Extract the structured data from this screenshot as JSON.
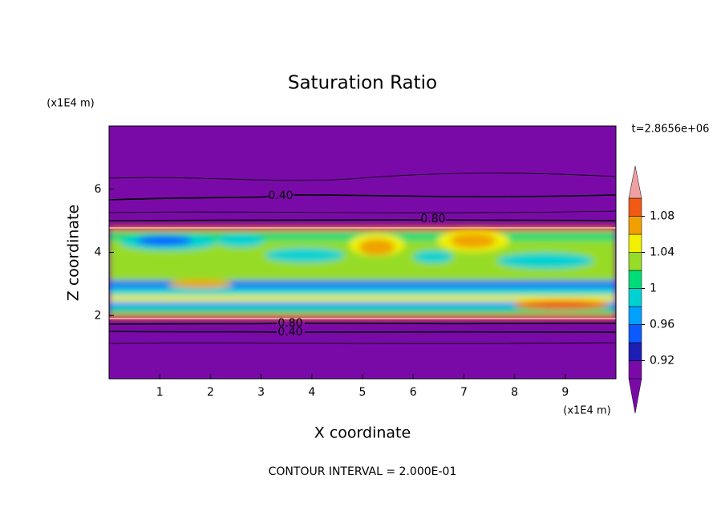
{
  "chart_data": {
    "type": "contour",
    "title": "Saturation Ratio",
    "x_label": "X coordinate",
    "y_label": "Z coordinate",
    "x_unit": "(x1E4 m)",
    "y_unit": "(x1E4 m)",
    "time_label": "t=2.8656e+06",
    "footer": "CONTOUR INTERVAL = 2.000E-01",
    "xlim": [
      0,
      10
    ],
    "xticks": [
      1,
      2,
      3,
      4,
      5,
      6,
      7,
      8,
      9
    ],
    "ylim": [
      0,
      8
    ],
    "yticks": [
      2,
      4,
      6
    ],
    "contour_labels": [
      {
        "value": 0.4,
        "label": "0.40"
      },
      {
        "value": 0.8,
        "label": "0.80"
      },
      {
        "value": 0.8,
        "label": "0.80"
      },
      {
        "value": 0.4,
        "label": "0.40"
      }
    ],
    "colorbar_lim": [
      0.9,
      1.1
    ],
    "colorbar_levels": [
      0.92,
      0.94,
      0.96,
      0.98,
      1,
      1.02,
      1.04,
      1.06,
      1.08
    ],
    "colorbar_ticks": [
      0.92,
      0.96,
      1,
      1.04,
      1.08
    ],
    "colors": [
      "#7a0aa8",
      "#1e1eb4",
      "#0a5aff",
      "#00a0ff",
      "#00d2d2",
      "#00dc78",
      "#96dc28",
      "#f0f000",
      "#f0a000",
      "#f05a14",
      "#f0a0a0"
    ]
  }
}
